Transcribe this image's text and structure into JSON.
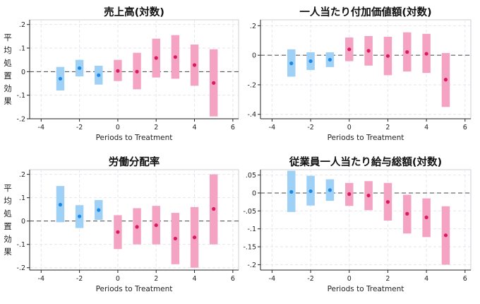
{
  "chart_data": [
    {
      "type": "range-point",
      "title": "売上高(対数)",
      "xlabel": "Periods to Treatment",
      "ylabel": "平均処置効果",
      "xlim": [
        -4.6,
        6.3
      ],
      "ylim": [
        -0.2,
        0.22
      ],
      "xticks": [
        -4,
        -2,
        0,
        2,
        4,
        6
      ],
      "yticks": [
        -0.2,
        -0.1,
        0,
        0.1,
        0.2
      ],
      "yticklabels": [
        "-.2",
        "-.1",
        "0",
        ".1",
        ".2"
      ],
      "colors": {
        "pre": "#9fd0f5",
        "pre_point": "#1e88e5",
        "post": "#f5a3c3",
        "post_point": "#d81b60"
      },
      "points": [
        {
          "x": -3,
          "y": -0.03,
          "lo": -0.08,
          "hi": 0.02,
          "group": "pre"
        },
        {
          "x": -2,
          "y": 0.015,
          "lo": -0.02,
          "hi": 0.05,
          "group": "pre"
        },
        {
          "x": -1,
          "y": -0.015,
          "lo": -0.055,
          "hi": 0.025,
          "group": "pre"
        },
        {
          "x": 0,
          "y": 0.003,
          "lo": -0.04,
          "hi": 0.05,
          "group": "post"
        },
        {
          "x": 1,
          "y": 0.0,
          "lo": -0.075,
          "hi": 0.08,
          "group": "post"
        },
        {
          "x": 2,
          "y": 0.058,
          "lo": -0.025,
          "hi": 0.14,
          "group": "post"
        },
        {
          "x": 3,
          "y": 0.062,
          "lo": -0.03,
          "hi": 0.155,
          "group": "post"
        },
        {
          "x": 4,
          "y": 0.028,
          "lo": -0.06,
          "hi": 0.115,
          "group": "post"
        },
        {
          "x": 5,
          "y": -0.048,
          "lo": -0.19,
          "hi": 0.095,
          "group": "post"
        }
      ]
    },
    {
      "type": "range-point",
      "title": "一人当たり付加価値額(対数)",
      "xlabel": "Periods to Treatment",
      "ylabel": "",
      "xlim": [
        -4.6,
        6.3
      ],
      "ylim": [
        -0.43,
        0.24
      ],
      "xticks": [
        -4,
        -2,
        0,
        2,
        4,
        6
      ],
      "yticks": [
        -0.4,
        -0.2,
        0,
        0.2
      ],
      "yticklabels": [
        "-.4",
        "-.2",
        "0",
        ".2"
      ],
      "colors": {
        "pre": "#9fd0f5",
        "pre_point": "#1e88e5",
        "post": "#f5a3c3",
        "post_point": "#d81b60"
      },
      "points": [
        {
          "x": -3,
          "y": -0.055,
          "lo": -0.145,
          "hi": 0.04,
          "group": "pre"
        },
        {
          "x": -2,
          "y": -0.04,
          "lo": -0.1,
          "hi": 0.02,
          "group": "pre"
        },
        {
          "x": -1,
          "y": -0.03,
          "lo": -0.08,
          "hi": 0.02,
          "group": "pre"
        },
        {
          "x": 0,
          "y": 0.04,
          "lo": -0.04,
          "hi": 0.12,
          "group": "post"
        },
        {
          "x": 1,
          "y": 0.03,
          "lo": -0.07,
          "hi": 0.13,
          "group": "post"
        },
        {
          "x": 2,
          "y": -0.005,
          "lo": -0.135,
          "hi": 0.125,
          "group": "post"
        },
        {
          "x": 3,
          "y": 0.022,
          "lo": -0.11,
          "hi": 0.155,
          "group": "post"
        },
        {
          "x": 4,
          "y": 0.01,
          "lo": -0.12,
          "hi": 0.145,
          "group": "post"
        },
        {
          "x": 5,
          "y": -0.165,
          "lo": -0.35,
          "hi": 0.015,
          "group": "post"
        }
      ]
    },
    {
      "type": "range-point",
      "title": "労働分配率",
      "xlabel": "Periods to Treatment",
      "ylabel": "平均処置効果",
      "xlim": [
        -4.6,
        6.3
      ],
      "ylim": [
        -0.21,
        0.22
      ],
      "xticks": [
        -4,
        -2,
        0,
        2,
        4,
        6
      ],
      "yticks": [
        -0.2,
        -0.1,
        0,
        0.1,
        0.2
      ],
      "yticklabels": [
        "-.2",
        "-.1",
        "0",
        ".1",
        ".2"
      ],
      "colors": {
        "pre": "#9fd0f5",
        "pre_point": "#1e88e5",
        "post": "#f5a3c3",
        "post_point": "#d81b60"
      },
      "points": [
        {
          "x": -3,
          "y": 0.07,
          "lo": -0.005,
          "hi": 0.15,
          "group": "pre"
        },
        {
          "x": -2,
          "y": 0.02,
          "lo": -0.03,
          "hi": 0.068,
          "group": "pre"
        },
        {
          "x": -1,
          "y": 0.047,
          "lo": 0.005,
          "hi": 0.09,
          "group": "pre"
        },
        {
          "x": 0,
          "y": -0.047,
          "lo": -0.12,
          "hi": 0.025,
          "group": "post"
        },
        {
          "x": 1,
          "y": -0.025,
          "lo": -0.1,
          "hi": 0.055,
          "group": "post"
        },
        {
          "x": 2,
          "y": -0.018,
          "lo": -0.1,
          "hi": 0.065,
          "group": "post"
        },
        {
          "x": 3,
          "y": -0.075,
          "lo": -0.185,
          "hi": 0.035,
          "group": "post"
        },
        {
          "x": 4,
          "y": -0.07,
          "lo": -0.2,
          "hi": 0.06,
          "group": "post"
        },
        {
          "x": 5,
          "y": 0.052,
          "lo": -0.1,
          "hi": 0.2,
          "group": "post"
        }
      ]
    },
    {
      "type": "range-point",
      "title": "従業員一人当たり給与総額(対数)",
      "xlabel": "Periods to Treatment",
      "ylabel": "",
      "xlim": [
        -4.6,
        6.3
      ],
      "ylim": [
        -0.215,
        0.065
      ],
      "xticks": [
        -4,
        -2,
        0,
        2,
        4,
        6
      ],
      "yticks": [
        -0.2,
        -0.15,
        -0.1,
        -0.05,
        0,
        0.05
      ],
      "yticklabels": [
        "-.2",
        "-.15",
        "-.1",
        "-.05",
        "0",
        ".05"
      ],
      "colors": {
        "pre": "#9fd0f5",
        "pre_point": "#1e88e5",
        "post": "#f5a3c3",
        "post_point": "#d81b60"
      },
      "points": [
        {
          "x": -3,
          "y": 0.003,
          "lo": -0.053,
          "hi": 0.062,
          "group": "pre"
        },
        {
          "x": -2,
          "y": 0.005,
          "lo": -0.035,
          "hi": 0.048,
          "group": "pre"
        },
        {
          "x": -1,
          "y": 0.008,
          "lo": -0.022,
          "hi": 0.038,
          "group": "pre"
        },
        {
          "x": 0,
          "y": -0.003,
          "lo": -0.036,
          "hi": 0.028,
          "group": "post"
        },
        {
          "x": 1,
          "y": -0.007,
          "lo": -0.048,
          "hi": 0.033,
          "group": "post"
        },
        {
          "x": 2,
          "y": -0.025,
          "lo": -0.077,
          "hi": 0.028,
          "group": "post"
        },
        {
          "x": 3,
          "y": -0.058,
          "lo": -0.113,
          "hi": -0.005,
          "group": "post"
        },
        {
          "x": 4,
          "y": -0.068,
          "lo": -0.123,
          "hi": -0.015,
          "group": "post"
        },
        {
          "x": 5,
          "y": -0.118,
          "lo": -0.2,
          "hi": -0.037,
          "group": "post"
        }
      ]
    }
  ]
}
